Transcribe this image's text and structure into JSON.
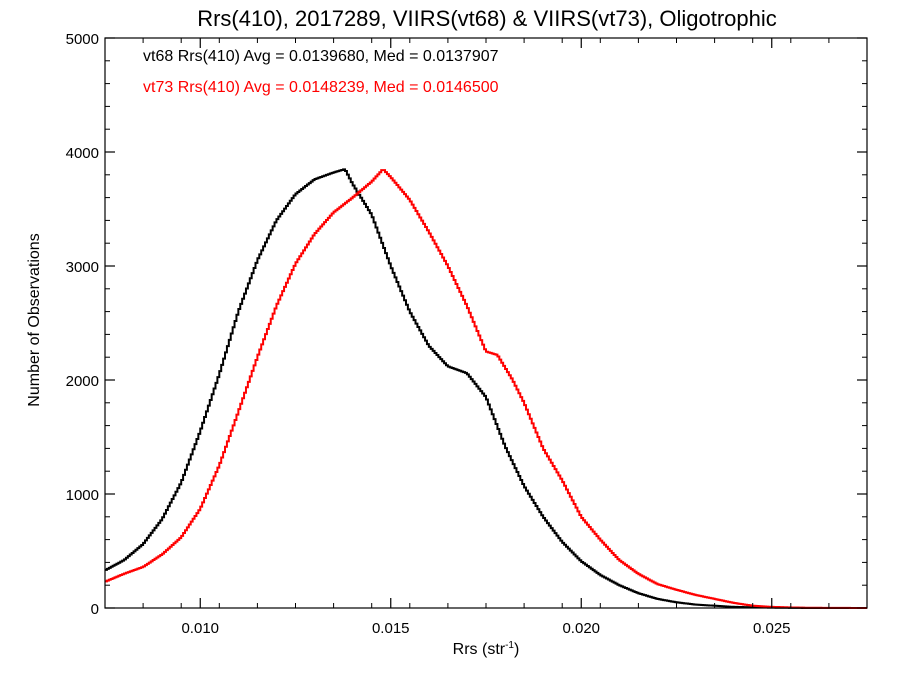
{
  "chart_data": {
    "type": "line",
    "title": "Rrs(410), 2017289, VIIRS(vt68) & VIIRS(vt73), Oligotrophic",
    "xlabel": "Rrs (str",
    "xlabel_sup": "-1",
    "xlabel_end": ")",
    "ylabel": "Number of Observations",
    "xlim": [
      0.0075,
      0.0275
    ],
    "ylim": [
      0,
      5000
    ],
    "xticks": [
      0.01,
      0.015,
      0.02,
      0.025
    ],
    "xtick_labels": [
      "0.010",
      "0.015",
      "0.020",
      "0.025"
    ],
    "yticks": [
      0,
      1000,
      2000,
      3000,
      4000,
      5000
    ],
    "ytick_labels": [
      "0",
      "1000",
      "2000",
      "3000",
      "4000",
      "5000"
    ],
    "grid": false,
    "legend_position": "top-left",
    "series": [
      {
        "name": "vt68",
        "legend": "vt68 Rrs(410) Avg = 0.0139680, Med = 0.0137907",
        "color": "#000000",
        "points": [
          [
            0.0075,
            330
          ],
          [
            0.008,
            420
          ],
          [
            0.0085,
            560
          ],
          [
            0.009,
            780
          ],
          [
            0.0095,
            1100
          ],
          [
            0.01,
            1550
          ],
          [
            0.0105,
            2050
          ],
          [
            0.011,
            2600
          ],
          [
            0.0115,
            3050
          ],
          [
            0.012,
            3400
          ],
          [
            0.0125,
            3630
          ],
          [
            0.013,
            3760
          ],
          [
            0.0135,
            3820
          ],
          [
            0.0138,
            3850
          ],
          [
            0.014,
            3720
          ],
          [
            0.0145,
            3450
          ],
          [
            0.015,
            3000
          ],
          [
            0.0155,
            2600
          ],
          [
            0.016,
            2300
          ],
          [
            0.0165,
            2120
          ],
          [
            0.017,
            2060
          ],
          [
            0.0175,
            1850
          ],
          [
            0.018,
            1420
          ],
          [
            0.0185,
            1070
          ],
          [
            0.019,
            800
          ],
          [
            0.0195,
            580
          ],
          [
            0.02,
            410
          ],
          [
            0.0205,
            290
          ],
          [
            0.021,
            200
          ],
          [
            0.0215,
            130
          ],
          [
            0.022,
            80
          ],
          [
            0.0225,
            50
          ],
          [
            0.023,
            30
          ],
          [
            0.0235,
            20
          ],
          [
            0.024,
            10
          ],
          [
            0.025,
            3
          ],
          [
            0.026,
            0
          ],
          [
            0.0275,
            0
          ]
        ]
      },
      {
        "name": "vt73",
        "legend": "vt73 Rrs(410) Avg = 0.0148239, Med = 0.0146500",
        "color": "#ff0000",
        "points": [
          [
            0.0075,
            230
          ],
          [
            0.008,
            300
          ],
          [
            0.0085,
            360
          ],
          [
            0.009,
            470
          ],
          [
            0.0095,
            620
          ],
          [
            0.01,
            870
          ],
          [
            0.0105,
            1250
          ],
          [
            0.011,
            1720
          ],
          [
            0.0115,
            2200
          ],
          [
            0.012,
            2650
          ],
          [
            0.0125,
            3020
          ],
          [
            0.013,
            3280
          ],
          [
            0.0135,
            3470
          ],
          [
            0.014,
            3600
          ],
          [
            0.0145,
            3740
          ],
          [
            0.0148,
            3850
          ],
          [
            0.015,
            3780
          ],
          [
            0.0155,
            3580
          ],
          [
            0.016,
            3300
          ],
          [
            0.0165,
            3000
          ],
          [
            0.017,
            2650
          ],
          [
            0.0175,
            2250
          ],
          [
            0.0178,
            2220
          ],
          [
            0.0182,
            2000
          ],
          [
            0.0185,
            1800
          ],
          [
            0.019,
            1400
          ],
          [
            0.0195,
            1120
          ],
          [
            0.02,
            800
          ],
          [
            0.0205,
            600
          ],
          [
            0.021,
            420
          ],
          [
            0.0215,
            300
          ],
          [
            0.022,
            210
          ],
          [
            0.0225,
            160
          ],
          [
            0.023,
            115
          ],
          [
            0.0235,
            80
          ],
          [
            0.024,
            45
          ],
          [
            0.0245,
            20
          ],
          [
            0.025,
            10
          ],
          [
            0.0255,
            5
          ],
          [
            0.026,
            2
          ],
          [
            0.0275,
            0
          ]
        ]
      }
    ]
  }
}
